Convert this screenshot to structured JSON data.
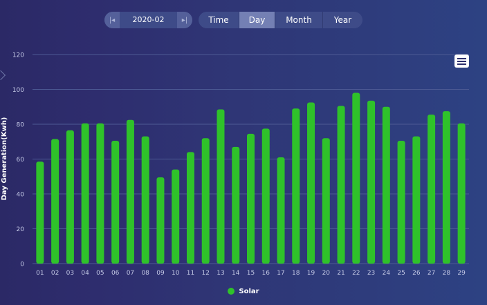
{
  "date_picker": {
    "value": "2020-02",
    "prev_icon": "skip-back-icon",
    "next_icon": "skip-forward-icon"
  },
  "tabs": [
    {
      "label": "Time",
      "active": false
    },
    {
      "label": "Day",
      "active": true
    },
    {
      "label": "Month",
      "active": false
    },
    {
      "label": "Year",
      "active": false
    }
  ],
  "menu_icon": "hamburger-menu-icon",
  "colors": {
    "bar": "#2fc22a",
    "grid": "#4d5a94",
    "tick": "#c5cae6"
  },
  "chart_data": {
    "type": "bar",
    "title": "",
    "xlabel": "",
    "ylabel": "Day  Generation(Kwh)",
    "ylim": [
      0,
      120
    ],
    "yticks": [
      "0",
      "20",
      "40",
      "60",
      "80",
      "100",
      "120"
    ],
    "categories": [
      "01",
      "02",
      "03",
      "04",
      "05",
      "06",
      "07",
      "08",
      "09",
      "10",
      "11",
      "12",
      "13",
      "14",
      "15",
      "16",
      "17",
      "18",
      "19",
      "20",
      "21",
      "22",
      "23",
      "24",
      "25",
      "26",
      "27",
      "28",
      "29"
    ],
    "series": [
      {
        "name": "Solar",
        "values": [
          58.5,
          71.5,
          76.5,
          80.5,
          80.5,
          70.5,
          82.5,
          73,
          49.5,
          54,
          64,
          72,
          88.5,
          67,
          74.5,
          77.5,
          61,
          89,
          92.5,
          72,
          90.5,
          98,
          93.5,
          90,
          70.5,
          73,
          85.5,
          87.5,
          80.5
        ]
      }
    ],
    "grid": true,
    "legend_position": "bottom-center"
  }
}
